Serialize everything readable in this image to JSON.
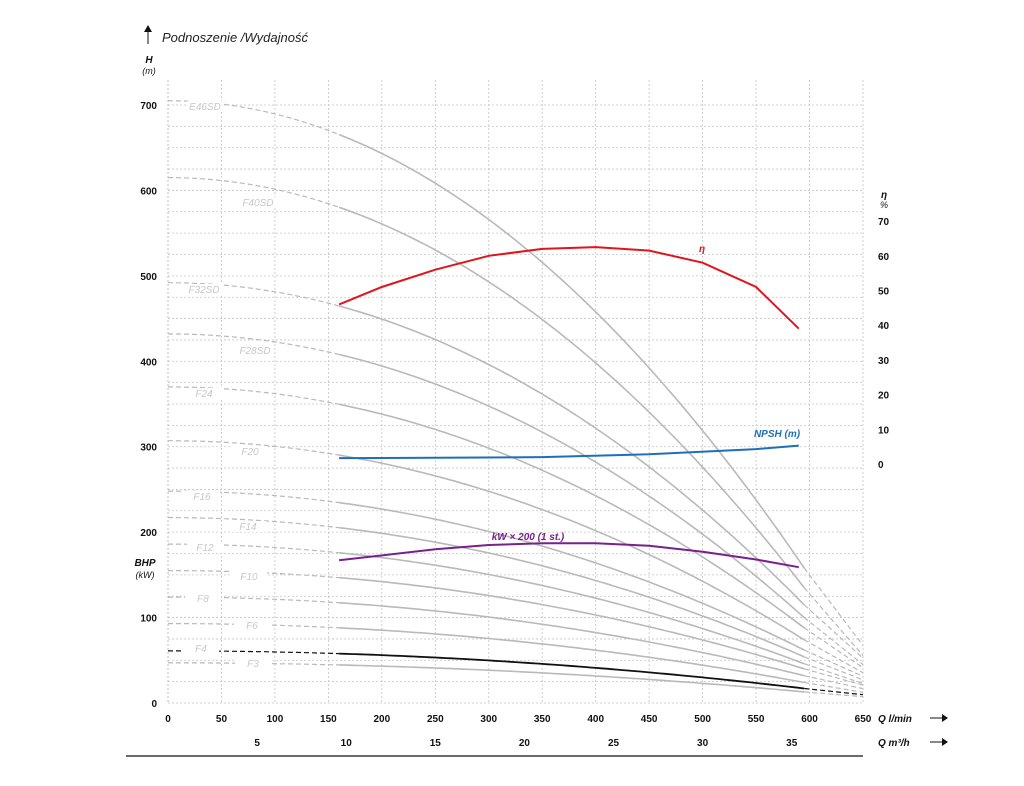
{
  "chart_data": {
    "type": "line",
    "title": "Podnoszenie /Wydajność",
    "ylabel": "H",
    "ylabel_unit": "(m)",
    "ylim": [
      0,
      700
    ],
    "y_ticks": [
      "0",
      "100",
      "200",
      "300",
      "400",
      "500",
      "600",
      "700"
    ],
    "y2_label": "BHP",
    "y2_unit": "(kW)",
    "eta_label": "η",
    "eta_unit": "%",
    "eta_ticks": [
      "0",
      "10",
      "20",
      "30",
      "40",
      "50",
      "60",
      "70"
    ],
    "x_label": "Q l/min",
    "x_lim": [
      0,
      650
    ],
    "x_ticks": [
      "0",
      "50",
      "100",
      "150",
      "200",
      "250",
      "300",
      "350",
      "400",
      "450",
      "500",
      "550",
      "600",
      "650"
    ],
    "x2_label": "Q m³/h",
    "x2_ticks": [
      "5",
      "10",
      "15",
      "20",
      "25",
      "30",
      "35"
    ],
    "grid": true,
    "pump_curves": [
      {
        "name": "E46SD",
        "shutoff": 705,
        "end_head": 158
      },
      {
        "name": "F40SD",
        "shutoff": 615,
        "end_head": 135
      },
      {
        "name": "F32SD",
        "shutoff": 492,
        "end_head": 115
      },
      {
        "name": "F28SD",
        "shutoff": 432,
        "end_head": 100
      },
      {
        "name": "F24",
        "shutoff": 370,
        "end_head": 88
      },
      {
        "name": "F20",
        "shutoff": 307,
        "end_head": 74
      },
      {
        "name": "F16",
        "shutoff": 248,
        "end_head": 62
      },
      {
        "name": "F14",
        "shutoff": 217,
        "end_head": 54
      },
      {
        "name": "F12",
        "shutoff": 186,
        "end_head": 46
      },
      {
        "name": "F10",
        "shutoff": 155,
        "end_head": 40
      },
      {
        "name": "F8",
        "shutoff": 124,
        "end_head": 32
      },
      {
        "name": "F6",
        "shutoff": 93,
        "end_head": 24
      },
      {
        "name": "F4",
        "shutoff": 61,
        "end_head": 17,
        "highlight": true
      },
      {
        "name": "F3",
        "shutoff": 47,
        "end_head": 13
      }
    ],
    "efficiency": {
      "name": "η",
      "color": "#e0151c",
      "x": [
        160,
        200,
        250,
        300,
        350,
        400,
        450,
        500,
        550,
        590
      ],
      "y": [
        46,
        51,
        56,
        60,
        62,
        62.5,
        61.5,
        58,
        51,
        39
      ]
    },
    "npsh": {
      "name": "NPSH (m)",
      "color": "#1e6fb8",
      "x": [
        160,
        250,
        350,
        450,
        550,
        590
      ],
      "y": [
        1.7,
        1.8,
        2.0,
        2.8,
        4.3,
        5.3
      ]
    },
    "power": {
      "name": "kW × 200 (1 st.)",
      "color": "#7a1f8e",
      "x": [
        160,
        250,
        300,
        350,
        400,
        450,
        500,
        550,
        590
      ],
      "y": [
        167,
        180,
        185,
        187,
        187,
        184,
        177,
        168,
        159
      ]
    }
  }
}
